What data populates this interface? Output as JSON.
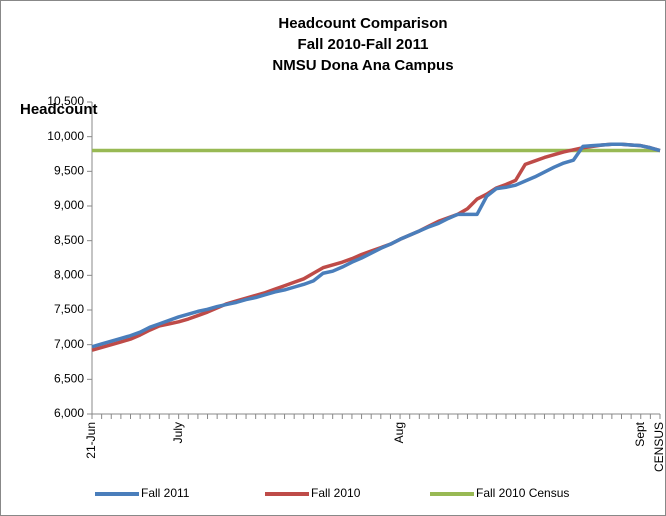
{
  "chart_data": {
    "type": "line",
    "title": [
      "Headcount Comparison",
      "Fall 2010-Fall 2011",
      "NMSU Dona Ana Campus"
    ],
    "y_axis_label": "Headcount",
    "categories": [
      "21-Jun",
      null,
      null,
      null,
      null,
      null,
      null,
      null,
      null,
      "July",
      null,
      null,
      null,
      null,
      null,
      null,
      null,
      null,
      null,
      null,
      null,
      null,
      null,
      null,
      null,
      null,
      null,
      null,
      null,
      null,
      null,
      null,
      "Aug",
      null,
      null,
      null,
      null,
      null,
      null,
      null,
      null,
      null,
      null,
      null,
      null,
      null,
      null,
      null,
      null,
      null,
      null,
      null,
      null,
      null,
      null,
      null,
      null,
      "Sept",
      null,
      "CENSUS"
    ],
    "series": [
      {
        "name": "Fall 2011",
        "color": "#4a7ebb",
        "values": [
          6970,
          7010,
          7050,
          7090,
          7130,
          7180,
          7250,
          7300,
          7350,
          7400,
          7440,
          7480,
          7510,
          7550,
          7580,
          7610,
          7650,
          7680,
          7720,
          7760,
          7790,
          7830,
          7870,
          7920,
          8030,
          8060,
          8120,
          8190,
          8250,
          8320,
          8390,
          8450,
          8520,
          8580,
          8640,
          8700,
          8750,
          8820,
          8880,
          8880,
          8880,
          9140,
          9250,
          9270,
          9300,
          9360,
          9420,
          9490,
          9560,
          9620,
          9660,
          9860,
          9870,
          9880,
          9890,
          9890,
          9880,
          9870,
          9840,
          9800
        ]
      },
      {
        "name": "Fall 2010",
        "color": "#be4b48",
        "values": [
          6920,
          6960,
          7000,
          7040,
          7080,
          7140,
          7210,
          7270,
          7300,
          7330,
          7370,
          7420,
          7470,
          7530,
          7590,
          7630,
          7670,
          7710,
          7750,
          7800,
          7850,
          7900,
          7950,
          8030,
          8110,
          8150,
          8190,
          8240,
          8300,
          8350,
          8400,
          8450,
          8520,
          8580,
          8640,
          8710,
          8780,
          8830,
          8880,
          8960,
          9100,
          9170,
          9260,
          9310,
          9370,
          9600,
          9650,
          9700,
          9740,
          9780,
          9810,
          9840,
          9860,
          9880,
          9890,
          9890,
          9880,
          9870,
          9840,
          9800
        ]
      },
      {
        "name": "Fall 2010 Census",
        "color": "#98b954",
        "values": [
          9800,
          9800,
          9800,
          9800,
          9800,
          9800,
          9800,
          9800,
          9800,
          9800,
          9800,
          9800,
          9800,
          9800,
          9800,
          9800,
          9800,
          9800,
          9800,
          9800,
          9800,
          9800,
          9800,
          9800,
          9800,
          9800,
          9800,
          9800,
          9800,
          9800,
          9800,
          9800,
          9800,
          9800,
          9800,
          9800,
          9800,
          9800,
          9800,
          9800,
          9800,
          9800,
          9800,
          9800,
          9800,
          9800,
          9800,
          9800,
          9800,
          9800,
          9800,
          9800,
          9800,
          9800,
          9800,
          9800,
          9800,
          9800,
          9800,
          9800
        ]
      }
    ],
    "ylim": [
      6000,
      10500
    ],
    "yticks": [
      {
        "value": 6000,
        "label": "6,000"
      },
      {
        "value": 6500,
        "label": "6,500"
      },
      {
        "value": 7000,
        "label": "7,000"
      },
      {
        "value": 7500,
        "label": "7,500"
      },
      {
        "value": 8000,
        "label": "8,000"
      },
      {
        "value": 8500,
        "label": "8,500"
      },
      {
        "value": 9000,
        "label": "9,000"
      },
      {
        "value": 9500,
        "label": "9,500"
      },
      {
        "value": 10000,
        "label": "10,000"
      },
      {
        "value": 10500,
        "label": "10,500"
      }
    ],
    "legend": "bottom"
  }
}
